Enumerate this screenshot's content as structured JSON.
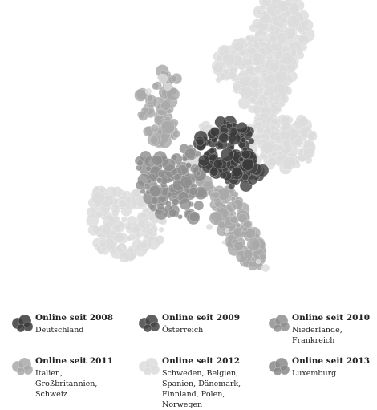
{
  "map": {
    "colors": {
      "2008": "#3b3b3b",
      "2009": "#444444",
      "2010": "#8f8f8f",
      "2011": "#a8a8a8",
      "2012": "#dcdcdc",
      "2013": "#8a8a8a"
    }
  },
  "legend": {
    "items": [
      {
        "year": "2008",
        "title": "Online seit 2008",
        "countries": "Deutschland"
      },
      {
        "year": "2009",
        "title": "Online seit 2009",
        "countries": "Österreich"
      },
      {
        "year": "2010",
        "title": "Online seit 2010",
        "countries": "Niederlande, Frankreich"
      },
      {
        "year": "2011",
        "title": "Online seit 2011",
        "countries": "Italien, Großbritannien, Schweiz"
      },
      {
        "year": "2012",
        "title": "Online seit 2012",
        "countries": "Schweden, Belgien, Spanien, Dänemark, Finnland, Polen, Norwegen"
      },
      {
        "year": "2013",
        "title": "Online seit 2013",
        "countries": "Luxemburg"
      }
    ]
  }
}
